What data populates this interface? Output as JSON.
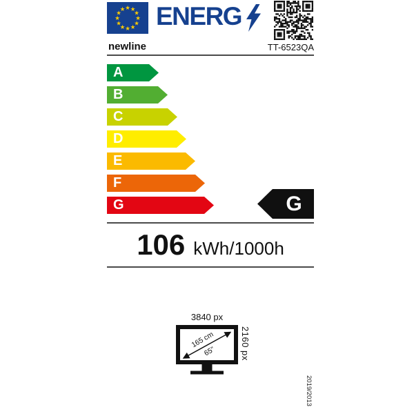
{
  "header": {
    "logo_text": "ENERG"
  },
  "brand": "newline",
  "model": "TT-6523QA",
  "energy_classes": [
    {
      "letter": "A",
      "color": "#009640"
    },
    {
      "letter": "B",
      "color": "#52AE32"
    },
    {
      "letter": "C",
      "color": "#C8D200"
    },
    {
      "letter": "D",
      "color": "#FFED00"
    },
    {
      "letter": "E",
      "color": "#FBBA00"
    },
    {
      "letter": "F",
      "color": "#EC6608"
    },
    {
      "letter": "G",
      "color": "#E30613"
    }
  ],
  "rating": "G",
  "consumption": {
    "value": "106",
    "unit": "kWh/1000h"
  },
  "screen": {
    "width_px": "3840 px",
    "height_px": "2160 px",
    "diagonal_cm": "165 cm",
    "diagonal_in": "65”"
  },
  "regulation": "2019/2013",
  "colors": {
    "eu_blue": "#16418F",
    "star_yellow": "#FFCC00",
    "rating_black": "#101010",
    "divider_gray": "#4A4A4A"
  }
}
